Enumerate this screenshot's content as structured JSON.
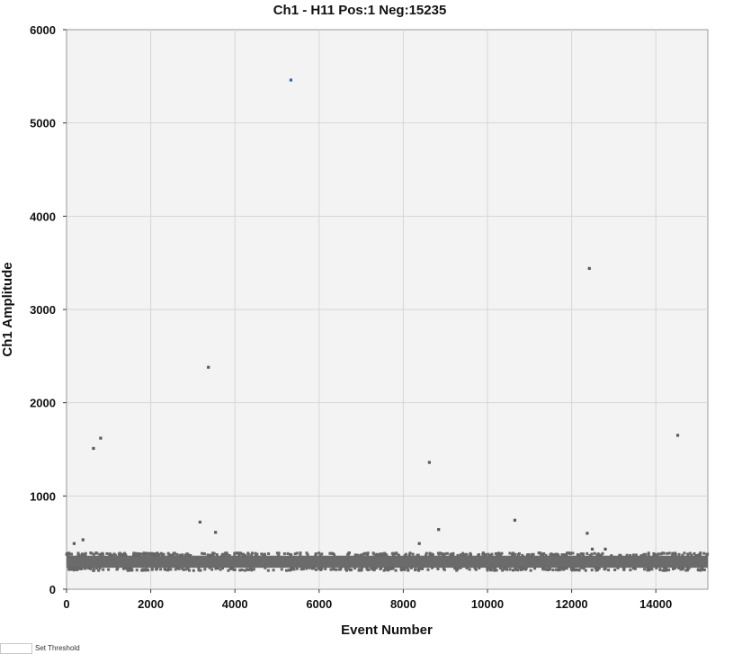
{
  "chart_data": {
    "type": "scatter",
    "title": "Ch1 - H11 Pos:1 Neg:15235",
    "xlabel": "Event Number",
    "ylabel": "Ch1 Amplitude",
    "xlim": [
      0,
      15235
    ],
    "ylim": [
      0,
      6000
    ],
    "xticks": [
      0,
      2000,
      4000,
      6000,
      8000,
      10000,
      12000,
      14000
    ],
    "yticks": [
      0,
      1000,
      2000,
      3000,
      4000,
      5000,
      6000
    ],
    "grid": true,
    "legend": "none",
    "threshold_fraction": null,
    "baseline_band": {
      "x_range": [
        0,
        15235
      ],
      "amplitude_range": [
        230,
        360
      ],
      "count": 15235
    },
    "series": [
      {
        "name": "Positive",
        "color": "#1f6fb2",
        "points": [
          [
            5330,
            5460
          ]
        ]
      },
      {
        "name": "Negative",
        "color": "#5a5a5a",
        "points": [
          [
            180,
            490
          ],
          [
            390,
            530
          ],
          [
            640,
            1510
          ],
          [
            810,
            1620
          ],
          [
            3170,
            720
          ],
          [
            3370,
            2380
          ],
          [
            3540,
            610
          ],
          [
            8380,
            490
          ],
          [
            8620,
            1360
          ],
          [
            8840,
            640
          ],
          [
            10650,
            740
          ],
          [
            12370,
            600
          ],
          [
            12420,
            3440
          ],
          [
            12490,
            430
          ],
          [
            12800,
            430
          ],
          [
            14520,
            1650
          ]
        ]
      }
    ]
  },
  "footer": {
    "label": "Set Threshold"
  }
}
